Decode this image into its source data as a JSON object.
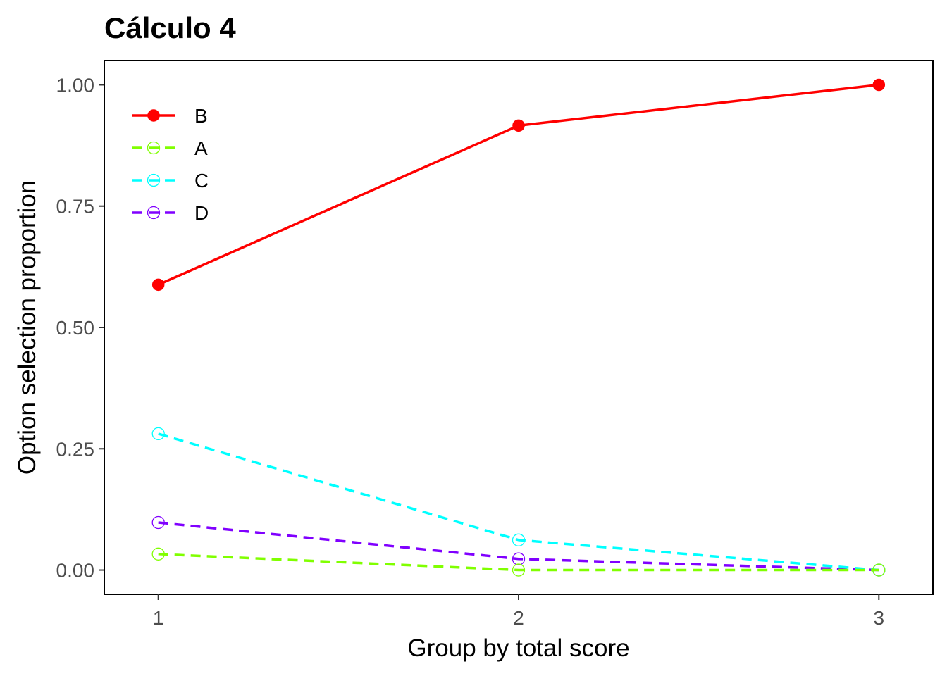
{
  "chart_data": {
    "type": "line",
    "title": "Cálculo 4",
    "xlabel": "Group by total score",
    "ylabel": "Option selection proportion",
    "x": [
      1,
      2,
      3
    ],
    "x_ticks": [
      "1",
      "2",
      "3"
    ],
    "xlim": [
      0.85,
      3.15
    ],
    "ylim": [
      -0.05,
      1.05
    ],
    "y_ticks": [
      "0.00",
      "0.25",
      "0.50",
      "0.75",
      "1.00"
    ],
    "y_tick_values": [
      0,
      0.25,
      0.5,
      0.75,
      1.0
    ],
    "grid": false,
    "legend_position": "top-left inside",
    "series": [
      {
        "name": "B",
        "values": [
          0.588,
          0.916,
          1.0
        ],
        "color": "#ff0000",
        "line": "solid",
        "marker": "filled-circle"
      },
      {
        "name": "A",
        "values": [
          0.033,
          0.0,
          0.0
        ],
        "color": "#80ff00",
        "line": "dashed",
        "marker": "open-circle"
      },
      {
        "name": "C",
        "values": [
          0.281,
          0.062,
          0.0
        ],
        "color": "#00ffff",
        "line": "dashed",
        "marker": "open-circle"
      },
      {
        "name": "D",
        "values": [
          0.098,
          0.023,
          0.0
        ],
        "color": "#8000ff",
        "line": "dashed",
        "marker": "open-circle"
      }
    ]
  }
}
